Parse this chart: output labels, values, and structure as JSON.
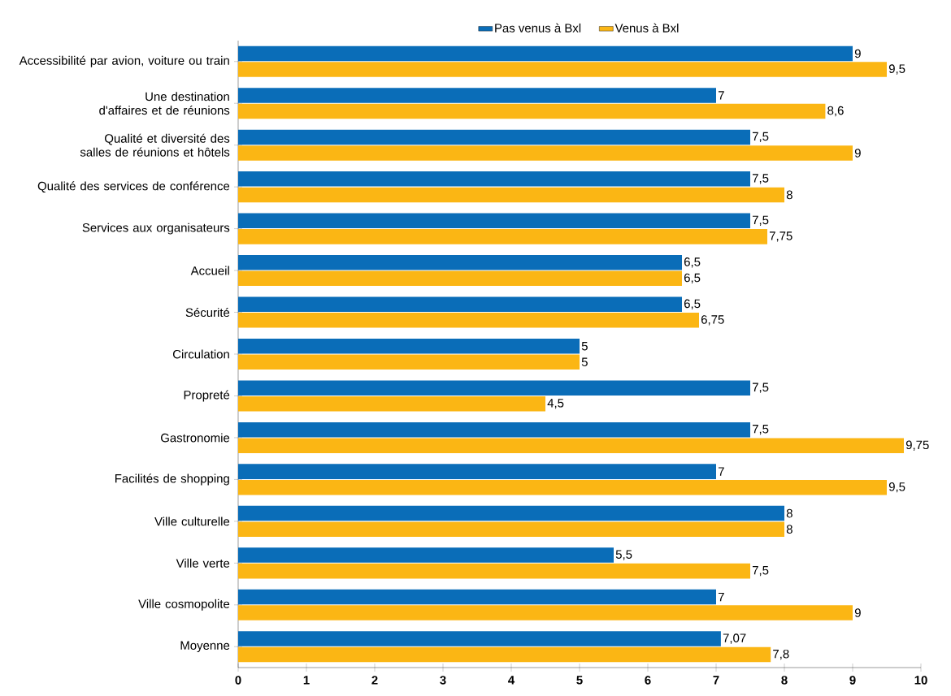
{
  "chart_data": {
    "type": "bar",
    "orientation": "horizontal",
    "legend": "top",
    "categories": [
      "Accessibilité par avion, voiture ou train",
      "Une destination d'affaires et de réunions",
      "Qualité et diversité des salles de réunions et hôtels",
      "Qualité des services de conférence",
      "Services aux organisateurs",
      "Accueil",
      "Sécurité",
      "Circulation",
      "Propreté",
      "Gastronomie",
      "Facilités de shopping",
      "Ville culturelle",
      "Ville verte",
      "Ville cosmopolite",
      "Moyenne"
    ],
    "series": [
      {
        "name": "Pas venus à Bxl",
        "color": "#0a6db8",
        "values": [
          9,
          7,
          7.5,
          7.5,
          7.5,
          6.5,
          6.5,
          5,
          7.5,
          7.5,
          7,
          8,
          5.5,
          7,
          7.07
        ],
        "value_labels": [
          "9",
          "7",
          "7,5",
          "7,5",
          "7,5",
          "6,5",
          "6,5",
          "5",
          "7,5",
          "7,5",
          "7",
          "8",
          "5,5",
          "7",
          "7,07"
        ]
      },
      {
        "name": "Venus à Bxl",
        "color": "#fbb614",
        "values": [
          9.5,
          8.6,
          9,
          8,
          7.75,
          6.5,
          6.75,
          5,
          4.5,
          9.75,
          9.5,
          8,
          7.5,
          9,
          7.8
        ],
        "value_labels": [
          "9,5",
          "8,6",
          "9",
          "8",
          "7,75",
          "6,5",
          "6,75",
          "5",
          "4,5",
          "9,75",
          "9,5",
          "8",
          "7,5",
          "9",
          "7,8"
        ]
      }
    ],
    "xlim": [
      0,
      10
    ],
    "xticks": [
      0,
      1,
      2,
      3,
      4,
      5,
      6,
      7,
      8,
      9,
      10
    ]
  }
}
